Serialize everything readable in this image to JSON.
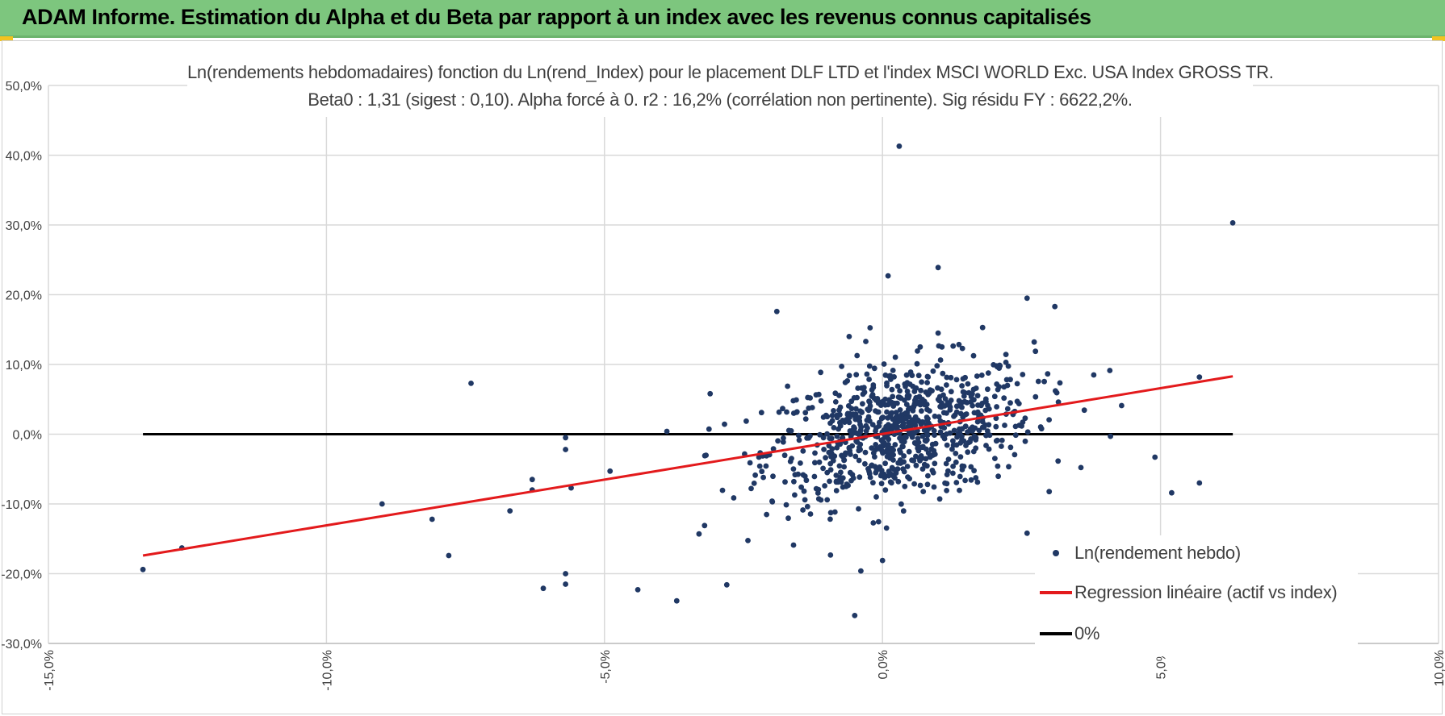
{
  "header": {
    "title": "ADAM Informe. Estimation du Alpha et du Beta par rapport à un index avec les revenus connus capitalisés"
  },
  "colors": {
    "header_bg": "#7dc67e",
    "accent_corner": "#f2c320",
    "points": "#203864",
    "regression": "#e31a1c",
    "zero_line": "#000000"
  },
  "chart_data": {
    "type": "scatter",
    "title": "Ln(rendements hebdomadaires) fonction du Ln(rend_Index) pour le placement DLF LTD et l'index MSCI WORLD Exc. USA Index GROSS TR.",
    "subtitle": "Beta0 : 1,31 (sigest : 0,10).  Alpha forcé à 0. r2 : 16,2% (corrélation non pertinente). Sig résidu FY : 6622,2%.",
    "xlabel": "",
    "ylabel": "",
    "xlim": [
      -0.15,
      0.1
    ],
    "ylim": [
      -0.3,
      0.5
    ],
    "x_ticks": [
      "-15,0%",
      "-10,0%",
      "-5,0%",
      "0,0%",
      "5,0%",
      "10,0%"
    ],
    "y_ticks": [
      "-30,0%",
      "-20,0%",
      "-10,0%",
      "0,0%",
      "10,0%",
      "20,0%",
      "30,0%",
      "40,0%",
      "50,0%"
    ],
    "grid": true,
    "legend_position": "bottom-right",
    "series": [
      {
        "name": "Ln(rendement hebdo)",
        "type": "scatter",
        "color": "#203864",
        "points_count_approx": 900,
        "outliers": [
          [
            -0.133,
            -0.194
          ],
          [
            -0.126,
            -0.163
          ],
          [
            -0.09,
            -0.1
          ],
          [
            -0.081,
            -0.122
          ],
          [
            -0.078,
            -0.174
          ],
          [
            -0.074,
            0.073
          ],
          [
            -0.067,
            -0.11
          ],
          [
            -0.063,
            -0.065
          ],
          [
            -0.063,
            -0.08
          ],
          [
            -0.057,
            -0.005
          ],
          [
            -0.057,
            -0.022
          ],
          [
            -0.057,
            -0.2
          ],
          [
            -0.061,
            -0.221
          ],
          [
            -0.056,
            -0.077
          ],
          [
            -0.057,
            -0.215
          ],
          [
            -0.049,
            -0.053
          ],
          [
            -0.044,
            -0.223
          ],
          [
            -0.037,
            -0.239
          ],
          [
            -0.033,
            -0.143
          ],
          [
            -0.032,
            -0.131
          ],
          [
            -0.031,
            0.058
          ],
          [
            -0.028,
            -0.216
          ],
          [
            -0.019,
            0.176
          ],
          [
            -0.016,
            -0.159
          ],
          [
            -0.006,
            0.14
          ],
          [
            -0.005,
            -0.26
          ],
          [
            -0.003,
            0.133
          ],
          [
            0.0,
            -0.181
          ],
          [
            0.001,
            0.227
          ],
          [
            0.003,
            0.413
          ],
          [
            0.01,
            0.239
          ],
          [
            0.01,
            0.145
          ],
          [
            0.018,
            0.153
          ],
          [
            0.026,
            0.195
          ],
          [
            0.026,
            -0.142
          ],
          [
            0.031,
            0.183
          ],
          [
            0.038,
            0.085
          ],
          [
            0.041,
            -0.003
          ],
          [
            0.043,
            0.041
          ],
          [
            0.049,
            -0.033
          ],
          [
            0.052,
            -0.084
          ],
          [
            0.057,
            -0.07
          ],
          [
            0.057,
            0.082
          ],
          [
            0.063,
            0.303
          ]
        ],
        "cloud": {
          "center": [
            0.003,
            0.0
          ],
          "x_sd": 0.012,
          "y_sd": 0.05
        }
      },
      {
        "name": "Regression linéaire (actif vs index)",
        "type": "line",
        "color": "#e31a1c",
        "x": [
          -0.133,
          0.063
        ],
        "y": [
          -0.174,
          0.083
        ]
      },
      {
        "name": "0%",
        "type": "line",
        "color": "#000000",
        "x": [
          -0.133,
          0.063
        ],
        "y": [
          0,
          0
        ]
      }
    ]
  }
}
